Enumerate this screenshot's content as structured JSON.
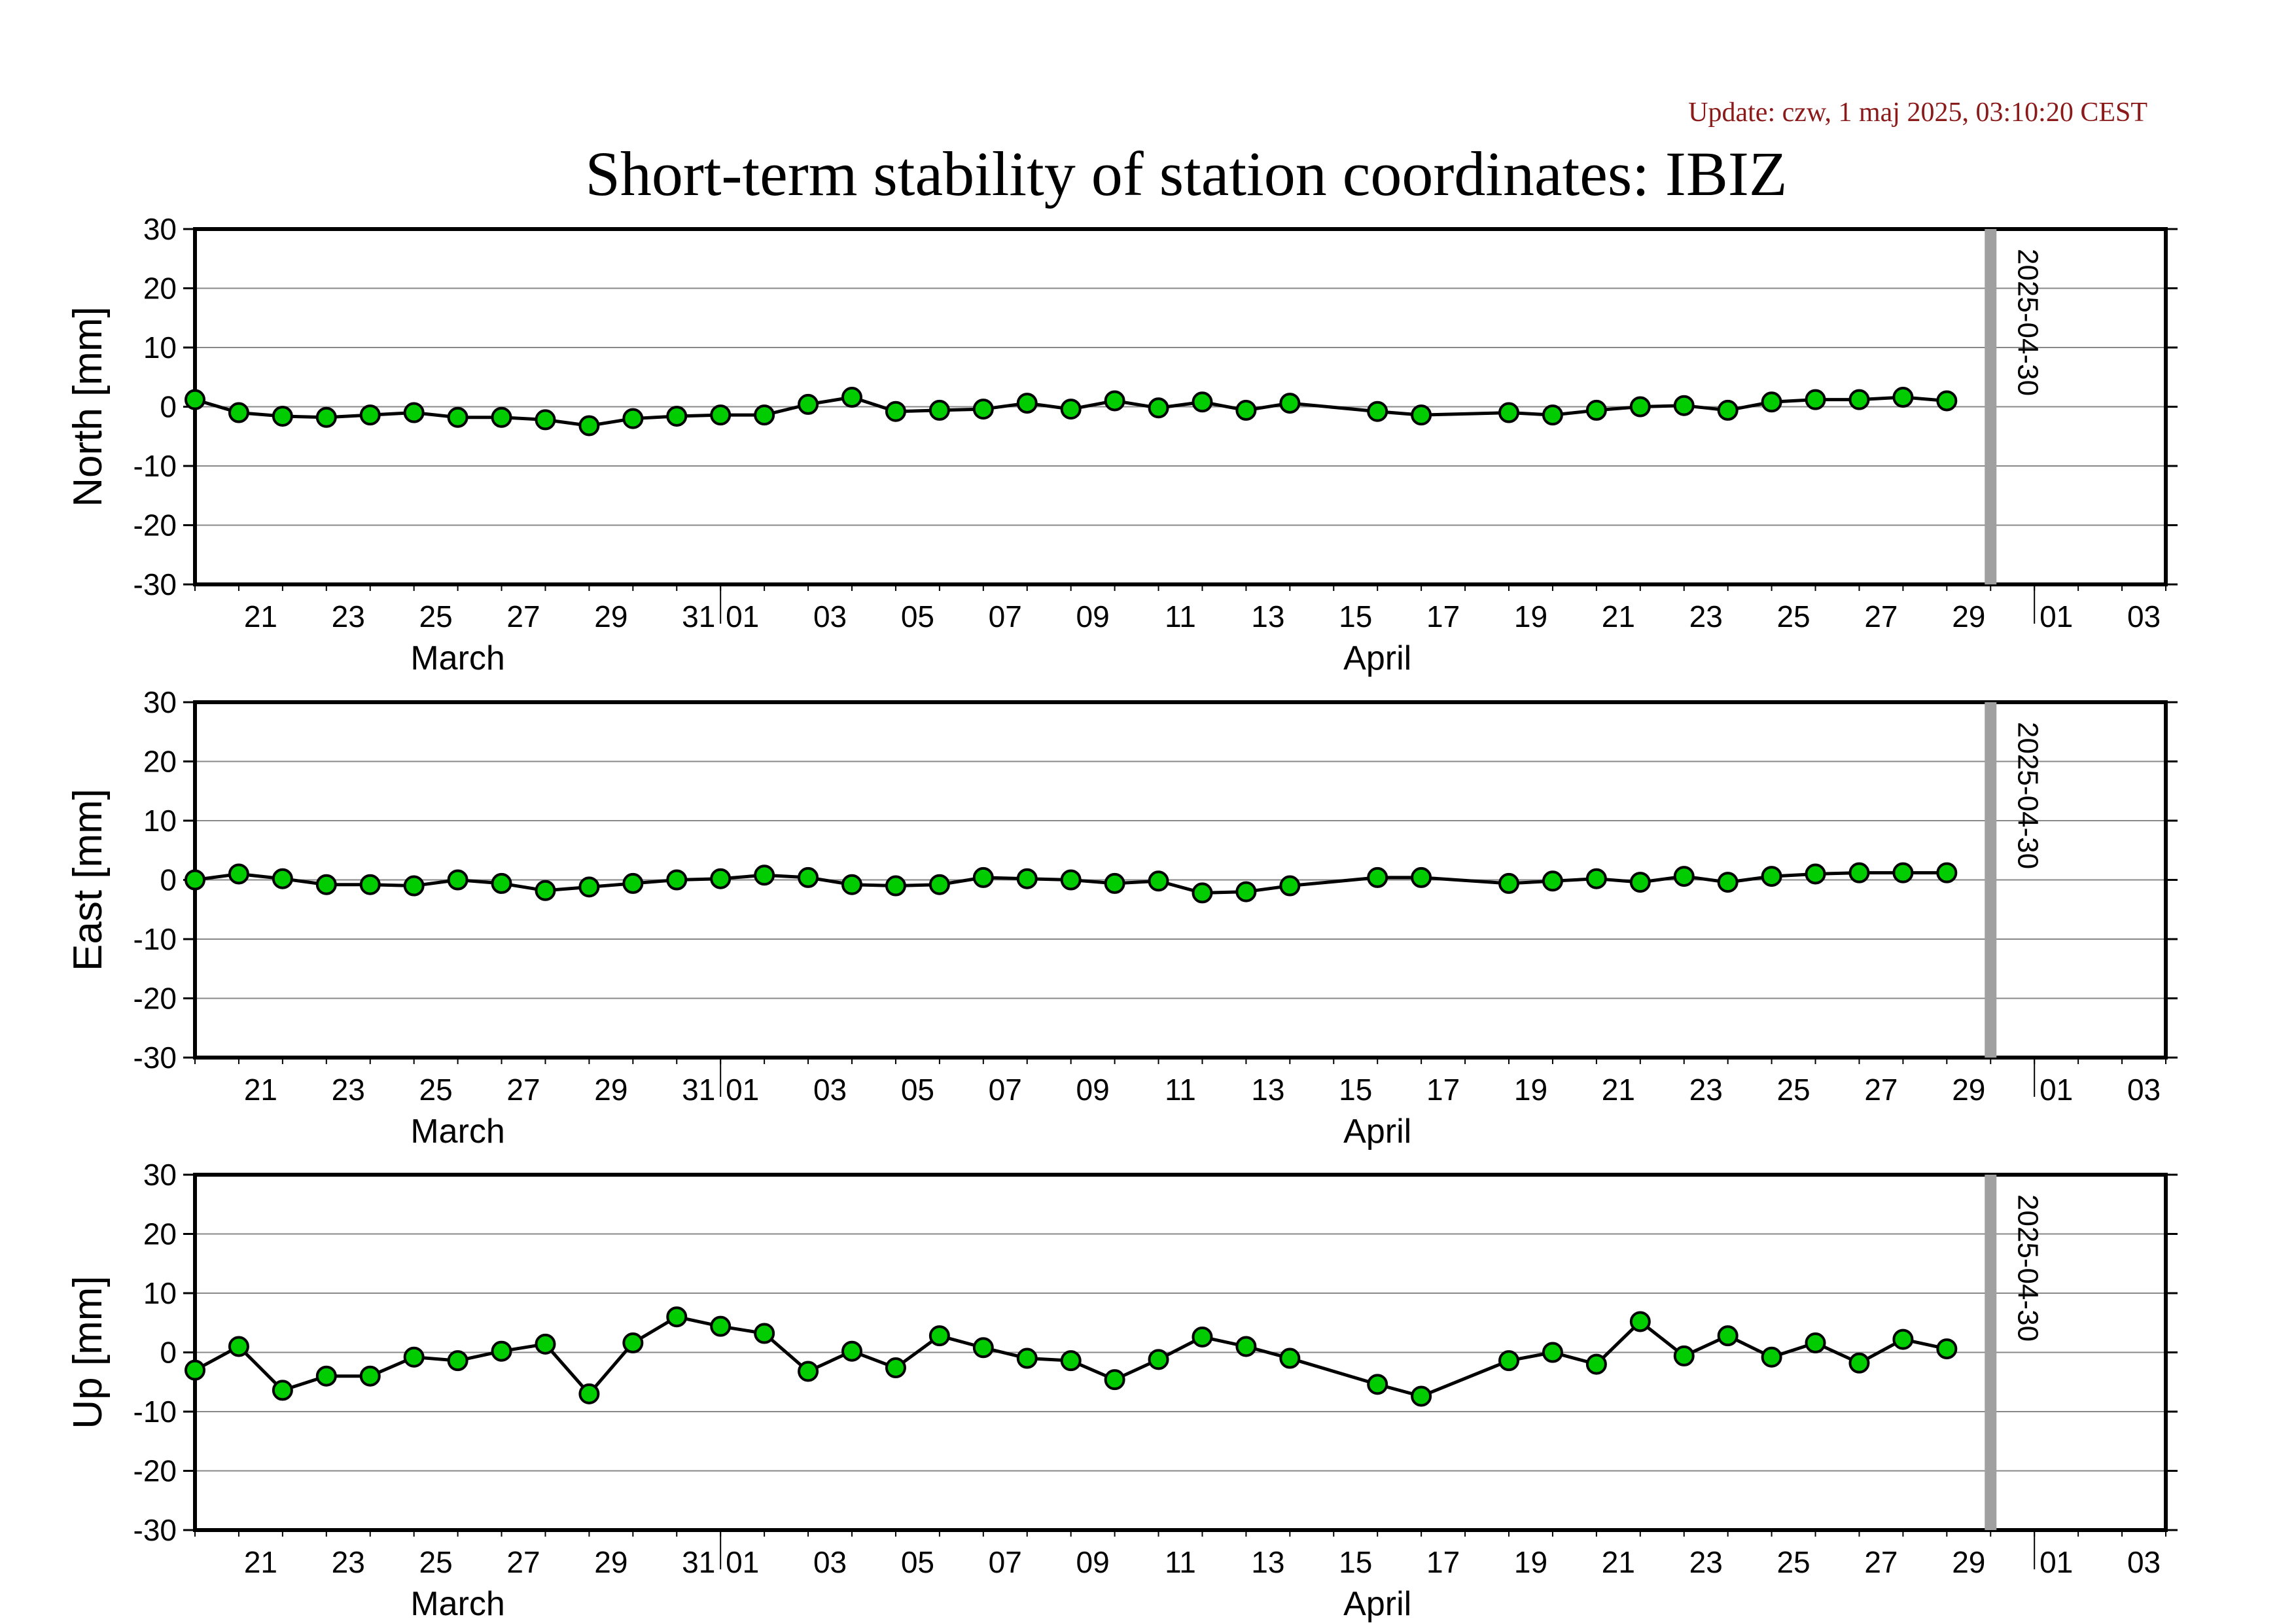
{
  "update_text": "Update: czw, 1 maj 2025, 03:10:20 CEST",
  "title": "Short-term stability of station coordinates: IBIZ",
  "chart_data": [
    {
      "type": "line",
      "ylabel": "North [mm]",
      "ylim": [
        -30,
        30
      ],
      "yticks": [
        -30,
        -20,
        -10,
        0,
        10,
        20,
        30
      ],
      "xlim": [
        "2025-03-20",
        "2025-05-04"
      ],
      "x_tick_labels": [
        "21",
        "23",
        "25",
        "27",
        "29",
        "31",
        "01",
        "03",
        "05",
        "07",
        "09",
        "11",
        "13",
        "15",
        "17",
        "19",
        "21",
        "23",
        "25",
        "27",
        "29",
        "01",
        "03"
      ],
      "month_labels": [
        "March",
        "April"
      ],
      "marker_line_label": "2025-04-30",
      "marker_line_date": "2025-04-30",
      "marker_line_color": "#a0a0a0",
      "point_color": "#00cc00",
      "grid": true,
      "series": [
        {
          "x": [
            "2025-03-20",
            "2025-03-21",
            "2025-03-22",
            "2025-03-23",
            "2025-03-24",
            "2025-03-25",
            "2025-03-26",
            "2025-03-27",
            "2025-03-28",
            "2025-03-29",
            "2025-03-30",
            "2025-03-31",
            "2025-04-01",
            "2025-04-02",
            "2025-04-03",
            "2025-04-04",
            "2025-04-05",
            "2025-04-06",
            "2025-04-07",
            "2025-04-08",
            "2025-04-09",
            "2025-04-10",
            "2025-04-11",
            "2025-04-12",
            "2025-04-13",
            "2025-04-14",
            "2025-04-16",
            "2025-04-17",
            "2025-04-19",
            "2025-04-20",
            "2025-04-21",
            "2025-04-22",
            "2025-04-23",
            "2025-04-24",
            "2025-04-25",
            "2025-04-26",
            "2025-04-27",
            "2025-04-28",
            "2025-04-29"
          ],
          "y": [
            1.2,
            -1,
            -1.6,
            -1.8,
            -1.4,
            -1,
            -1.8,
            -1.8,
            -2.2,
            -3.2,
            -2,
            -1.6,
            -1.4,
            -1.4,
            0.4,
            1.6,
            -0.8,
            -0.6,
            -0.4,
            0.6,
            -0.4,
            1,
            -0.2,
            0.8,
            -0.6,
            0.6,
            -0.8,
            -1.4,
            -1,
            -1.4,
            -0.6,
            0,
            0.2,
            -0.6,
            0.8,
            1.2,
            1.2,
            1.6,
            1
          ]
        }
      ]
    },
    {
      "type": "line",
      "ylabel": "East [mm]",
      "ylim": [
        -30,
        30
      ],
      "yticks": [
        -30,
        -20,
        -10,
        0,
        10,
        20,
        30
      ],
      "xlim": [
        "2025-03-20",
        "2025-05-04"
      ],
      "x_tick_labels": [
        "21",
        "23",
        "25",
        "27",
        "29",
        "31",
        "01",
        "03",
        "05",
        "07",
        "09",
        "11",
        "13",
        "15",
        "17",
        "19",
        "21",
        "23",
        "25",
        "27",
        "29",
        "01",
        "03"
      ],
      "month_labels": [
        "March",
        "April"
      ],
      "marker_line_label": "2025-04-30",
      "marker_line_date": "2025-04-30",
      "marker_line_color": "#a0a0a0",
      "point_color": "#00cc00",
      "grid": true,
      "series": [
        {
          "x": [
            "2025-03-20",
            "2025-03-21",
            "2025-03-22",
            "2025-03-23",
            "2025-03-24",
            "2025-03-25",
            "2025-03-26",
            "2025-03-27",
            "2025-03-28",
            "2025-03-29",
            "2025-03-30",
            "2025-03-31",
            "2025-04-01",
            "2025-04-02",
            "2025-04-03",
            "2025-04-04",
            "2025-04-05",
            "2025-04-06",
            "2025-04-07",
            "2025-04-08",
            "2025-04-09",
            "2025-04-10",
            "2025-04-11",
            "2025-04-12",
            "2025-04-13",
            "2025-04-14",
            "2025-04-16",
            "2025-04-17",
            "2025-04-19",
            "2025-04-20",
            "2025-04-21",
            "2025-04-22",
            "2025-04-23",
            "2025-04-24",
            "2025-04-25",
            "2025-04-26",
            "2025-04-27",
            "2025-04-28",
            "2025-04-29"
          ],
          "y": [
            0,
            1,
            0.2,
            -0.8,
            -0.8,
            -1,
            0,
            -0.6,
            -1.8,
            -1.2,
            -0.6,
            0,
            0.2,
            0.8,
            0.4,
            -0.8,
            -1,
            -0.8,
            0.4,
            0.2,
            0,
            -0.6,
            -0.2,
            -2.2,
            -2,
            -1,
            0.4,
            0.4,
            -0.6,
            -0.2,
            0.2,
            -0.4,
            0.6,
            -0.4,
            0.6,
            1,
            1.2,
            1.2,
            1.2
          ]
        }
      ]
    },
    {
      "type": "line",
      "ylabel": "Up [mm]",
      "ylim": [
        -30,
        30
      ],
      "yticks": [
        -30,
        -20,
        -10,
        0,
        10,
        20,
        30
      ],
      "xlim": [
        "2025-03-20",
        "2025-05-04"
      ],
      "x_tick_labels": [
        "21",
        "23",
        "25",
        "27",
        "29",
        "31",
        "01",
        "03",
        "05",
        "07",
        "09",
        "11",
        "13",
        "15",
        "17",
        "19",
        "21",
        "23",
        "25",
        "27",
        "29",
        "01",
        "03"
      ],
      "month_labels": [
        "March",
        "April"
      ],
      "marker_line_label": "2025-04-30",
      "marker_line_date": "2025-04-30",
      "marker_line_color": "#a0a0a0",
      "point_color": "#00cc00",
      "grid": true,
      "series": [
        {
          "x": [
            "2025-03-20",
            "2025-03-21",
            "2025-03-22",
            "2025-03-23",
            "2025-03-24",
            "2025-03-25",
            "2025-03-26",
            "2025-03-27",
            "2025-03-28",
            "2025-03-29",
            "2025-03-30",
            "2025-03-31",
            "2025-04-01",
            "2025-04-02",
            "2025-04-03",
            "2025-04-04",
            "2025-04-05",
            "2025-04-06",
            "2025-04-07",
            "2025-04-08",
            "2025-04-09",
            "2025-04-10",
            "2025-04-11",
            "2025-04-12",
            "2025-04-13",
            "2025-04-14",
            "2025-04-16",
            "2025-04-17",
            "2025-04-19",
            "2025-04-20",
            "2025-04-21",
            "2025-04-22",
            "2025-04-23",
            "2025-04-24",
            "2025-04-25",
            "2025-04-26",
            "2025-04-27",
            "2025-04-28",
            "2025-04-29"
          ],
          "y": [
            -3,
            1,
            -6.4,
            -4,
            -4,
            -0.8,
            -1.4,
            0.2,
            1.4,
            -7,
            1.6,
            6,
            4.4,
            3.2,
            -3.2,
            0.2,
            -2.6,
            2.8,
            0.8,
            -1,
            -1.4,
            -4.6,
            -1.2,
            2.6,
            1,
            -1,
            -5.4,
            -7.4,
            -1.4,
            0,
            -2,
            5.2,
            -0.6,
            2.8,
            -0.8,
            1.6,
            -1.8,
            2.2,
            0.6
          ]
        }
      ]
    }
  ]
}
